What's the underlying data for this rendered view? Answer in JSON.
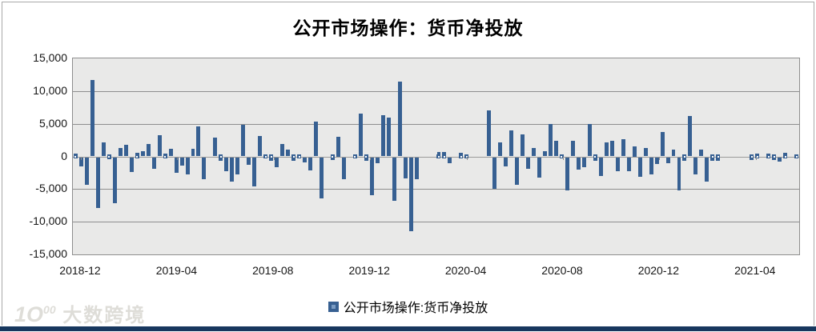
{
  "title": "公开市场操作：货币净投放",
  "legend": {
    "label": "公开市场操作:货币净投放",
    "marker_color": "#376092"
  },
  "watermark": {
    "logo_prefix": "1O",
    "logo_sup": "00",
    "text": "大数跨境"
  },
  "colors": {
    "bar": "#376092",
    "plot_background": "#e9e9e8",
    "gridline": "#8e8e8e",
    "frame_border": "#a9a9a9",
    "bottom_strip": "#17375e",
    "text": "#151515"
  },
  "chart_data": {
    "type": "bar",
    "title": "公开市场操作：货币净投放",
    "series_name": "公开市场操作:货币净投放",
    "x_start": "2018-12",
    "frequency": "weekly",
    "x_tick_labels": [
      "2018-12",
      "2019-04",
      "2019-08",
      "2019-12",
      "2020-04",
      "2020-08",
      "2020-12",
      "2021-04"
    ],
    "y_ticks": [
      15000,
      10000,
      5000,
      0,
      -5000,
      -10000,
      -15000
    ],
    "y_tick_labels": [
      "15,000",
      "10,000",
      "5,000",
      "0",
      "-5,000",
      "-10,000",
      "-15,000"
    ],
    "ylim": [
      -15000,
      15000
    ],
    "grid": true,
    "legend_position": "bottom",
    "values": [
      400,
      -1500,
      -4400,
      11700,
      -7900,
      2100,
      -400,
      -7200,
      1300,
      1800,
      -2400,
      600,
      800,
      1900,
      -1900,
      3300,
      400,
      1200,
      -2500,
      -1400,
      -2700,
      1200,
      4600,
      -3500,
      0,
      2900,
      -650,
      -2300,
      -3900,
      -2700,
      4800,
      -1300,
      -4600,
      3100,
      -300,
      -700,
      -1700,
      1900,
      1100,
      -700,
      300,
      -900,
      -2100,
      5300,
      -6400,
      0,
      -500,
      3000,
      -3500,
      0,
      100,
      6500,
      -700,
      -5900,
      -1000,
      6300,
      5900,
      -6800,
      11400,
      -3400,
      -11500,
      -3500,
      0,
      0,
      0,
      700,
      700,
      -1100,
      0,
      600,
      -300,
      0,
      0,
      0,
      7000,
      -4900,
      2100,
      -1500,
      4000,
      -4300,
      3400,
      -1900,
      1300,
      -3200,
      800,
      5000,
      2400,
      -300,
      -5200,
      2400,
      -2000,
      -1700,
      4900,
      -650,
      -3000,
      2100,
      2400,
      -2300,
      2600,
      -2300,
      1500,
      -3100,
      1300,
      -2700,
      -1200,
      3700,
      -1050,
      1100,
      -5200,
      -650,
      6200,
      -2800,
      1100,
      -3900,
      -650,
      -650,
      0,
      0,
      0,
      0,
      0,
      -600,
      450,
      0,
      400,
      -600,
      -800,
      500,
      0,
      -200
    ]
  }
}
